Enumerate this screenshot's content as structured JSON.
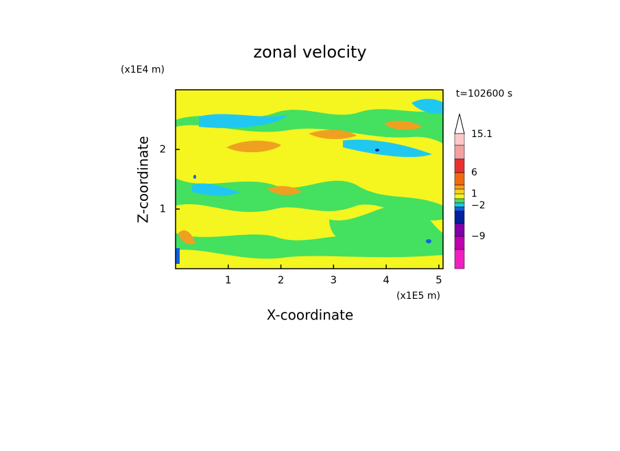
{
  "chart_data": {
    "type": "contour",
    "title": "zonal velocity",
    "x_label": "X-coordinate",
    "y_label": "Z-coordinate",
    "x_unit": "(x1E5 m)",
    "y_unit": "(x1E4 m)",
    "time_label": "t=102600 s",
    "xlim": [
      0,
      5.08
    ],
    "xticks": [
      1,
      2,
      3,
      4,
      5
    ],
    "ylim": [
      0,
      3
    ],
    "yticks": [
      1,
      2
    ],
    "colorbar": {
      "colors": [
        "#ffffff",
        "#ffc8c8",
        "#f4a0a0",
        "#e83030",
        "#f06a10",
        "#f0a020",
        "#f5d020",
        "#f5f520",
        "#44e060",
        "#20c8f0",
        "#1060e0",
        "#0020a0",
        "#8000a8",
        "#c000b0",
        "#f020c0"
      ],
      "ticks": [
        "15.1",
        "6",
        "1",
        "−2",
        "−9"
      ]
    }
  }
}
